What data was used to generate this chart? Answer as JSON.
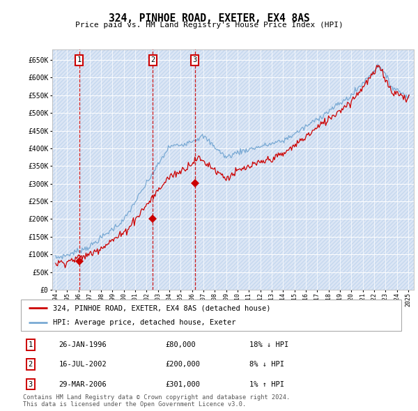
{
  "title": "324, PINHOE ROAD, EXETER, EX4 8AS",
  "subtitle": "Price paid vs. HM Land Registry's House Price Index (HPI)",
  "ylim": [
    0,
    680000
  ],
  "yticks": [
    0,
    50000,
    100000,
    150000,
    200000,
    250000,
    300000,
    350000,
    400000,
    450000,
    500000,
    550000,
    600000,
    650000
  ],
  "background_color": "#dce6f5",
  "grid_color": "#ffffff",
  "line_color_hpi": "#7aaad4",
  "line_color_paid": "#cc0000",
  "vline_color": "#cc0000",
  "sale_points": [
    {
      "date_num": 1996.07,
      "price": 80000,
      "label": "1"
    },
    {
      "date_num": 2002.54,
      "price": 200000,
      "label": "2"
    },
    {
      "date_num": 2006.24,
      "price": 301000,
      "label": "3"
    }
  ],
  "legend_entries": [
    {
      "label": "324, PINHOE ROAD, EXETER, EX4 8AS (detached house)",
      "color": "#cc0000"
    },
    {
      "label": "HPI: Average price, detached house, Exeter",
      "color": "#7aaad4"
    }
  ],
  "table_rows": [
    {
      "num": "1",
      "date": "26-JAN-1996",
      "price": "£80,000",
      "hpi": "18% ↓ HPI"
    },
    {
      "num": "2",
      "date": "16-JUL-2002",
      "price": "£200,000",
      "hpi": "8% ↓ HPI"
    },
    {
      "num": "3",
      "date": "29-MAR-2006",
      "price": "£301,000",
      "hpi": "1% ↑ HPI"
    }
  ],
  "footer": "Contains HM Land Registry data © Crown copyright and database right 2024.\nThis data is licensed under the Open Government Licence v3.0.",
  "xlim_start": 1993.7,
  "xlim_end": 2025.5,
  "xticks": [
    1994,
    1995,
    1996,
    1997,
    1998,
    1999,
    2000,
    2001,
    2002,
    2003,
    2004,
    2005,
    2006,
    2007,
    2008,
    2009,
    2010,
    2011,
    2012,
    2013,
    2014,
    2015,
    2016,
    2017,
    2018,
    2019,
    2020,
    2021,
    2022,
    2023,
    2024,
    2025
  ]
}
